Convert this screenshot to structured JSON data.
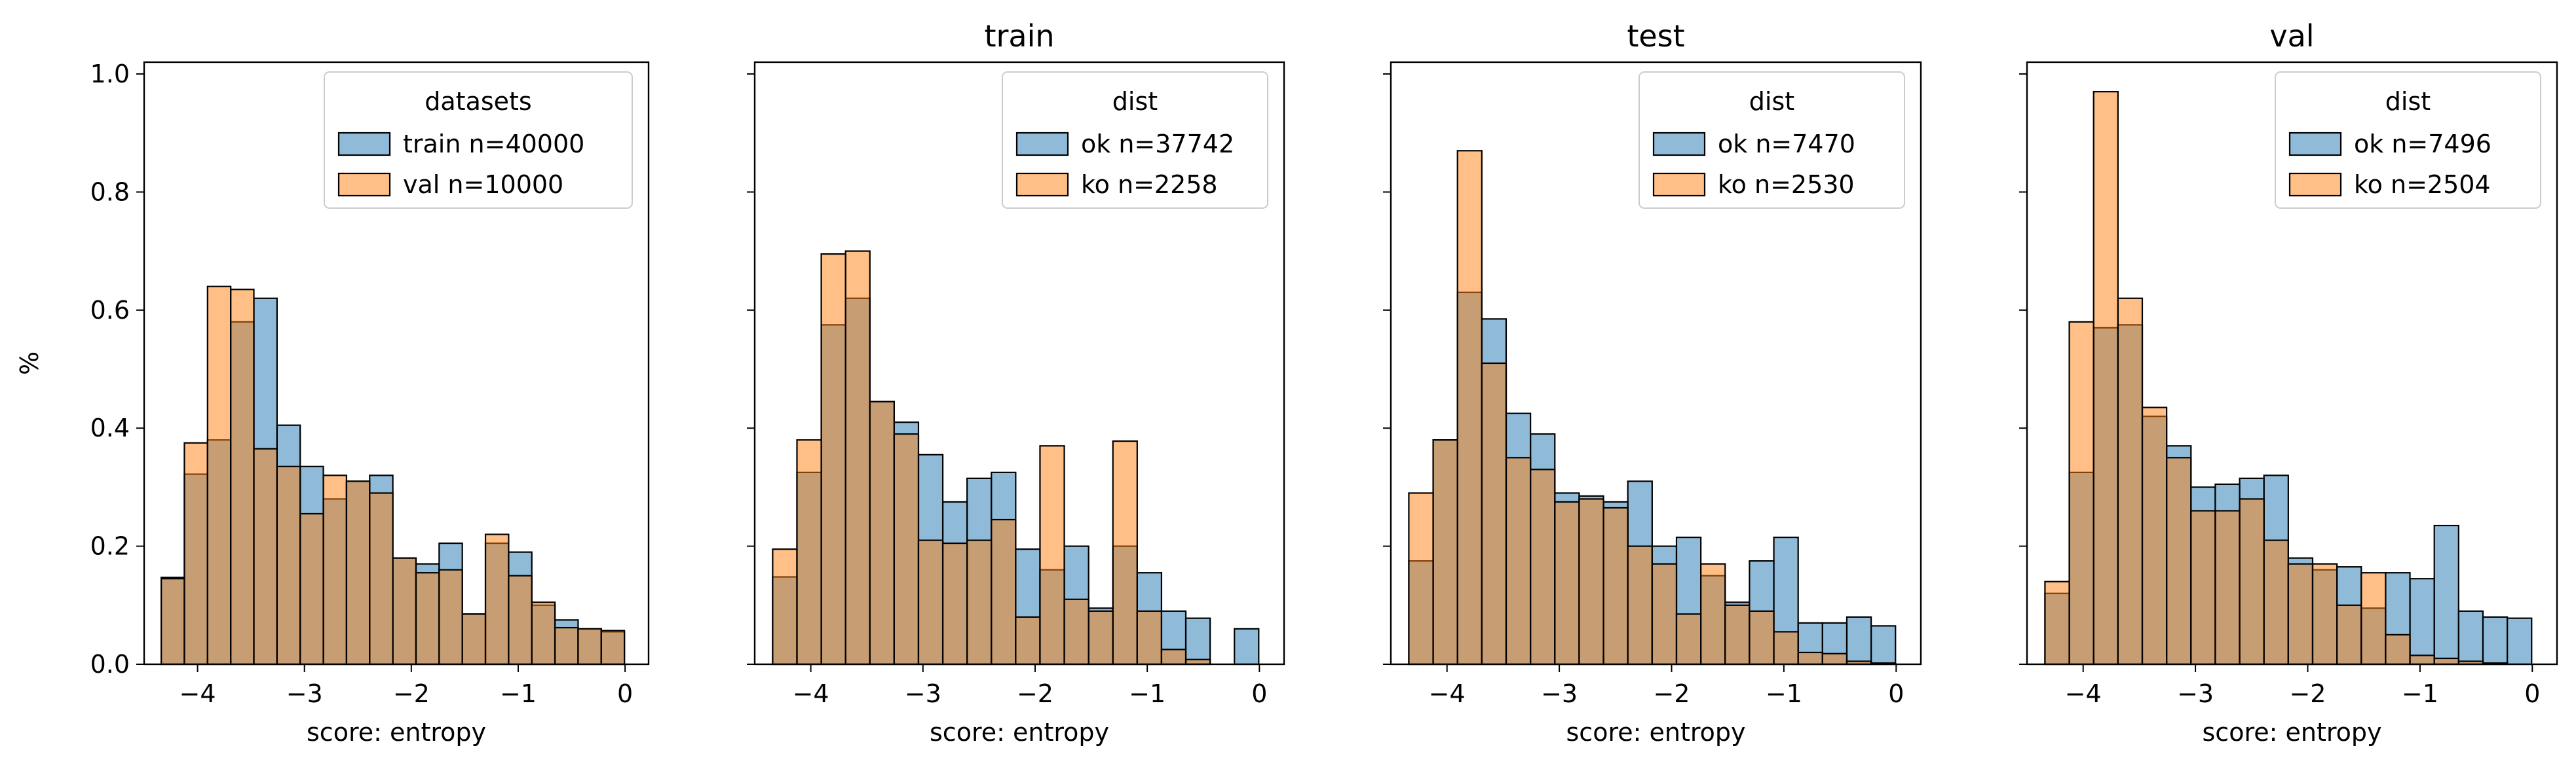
{
  "colors": {
    "series_a": "#1f77b4",
    "series_b": "#ff7f0e",
    "edge": "#000000"
  },
  "chart_data": [
    {
      "type": "bar",
      "subtype": "overlaid-histogram",
      "title": "",
      "xlabel": "score: entropy",
      "ylabel": "%",
      "xlim": [
        -4.5,
        0.22
      ],
      "ylim": [
        0,
        1.02
      ],
      "xticks": [
        "−4",
        "−3",
        "−2",
        "−1",
        "0"
      ],
      "yticks": [
        "0.0",
        "0.2",
        "0.4",
        "0.6",
        "0.8",
        "1.0"
      ],
      "legend": {
        "title": "datasets",
        "position": "top-right"
      },
      "bins": {
        "start": -4.34,
        "width": 0.2167
      },
      "series": [
        {
          "name": "train n=40000",
          "color": "series_a",
          "values": [
            0.147,
            0.322,
            0.38,
            0.58,
            0.62,
            0.405,
            0.335,
            0.28,
            0.31,
            0.32,
            0.18,
            0.17,
            0.205,
            0.085,
            0.205,
            0.19,
            0.1,
            0.075,
            0.06,
            0.055
          ]
        },
        {
          "name": "val n=10000",
          "color": "series_b",
          "values": [
            0.145,
            0.375,
            0.64,
            0.635,
            0.365,
            0.335,
            0.255,
            0.32,
            0.31,
            0.29,
            0.18,
            0.155,
            0.16,
            0.085,
            0.22,
            0.15,
            0.105,
            0.062,
            0.06,
            0.057
          ]
        }
      ]
    },
    {
      "type": "bar",
      "subtype": "overlaid-histogram",
      "title": "train",
      "xlabel": "score: entropy",
      "ylabel": "",
      "xlim": [
        -4.5,
        0.22
      ],
      "ylim": [
        0,
        1.02
      ],
      "xticks": [
        "−4",
        "−3",
        "−2",
        "−1",
        "0"
      ],
      "yticks": [
        "0.0",
        "0.2",
        "0.4",
        "0.6",
        "0.8",
        "1.0"
      ],
      "legend": {
        "title": "dist",
        "position": "top-right"
      },
      "bins": {
        "start": -4.34,
        "width": 0.2167
      },
      "series": [
        {
          "name": "ok n=37742",
          "color": "series_a",
          "values": [
            0.148,
            0.325,
            0.575,
            0.62,
            0.445,
            0.41,
            0.355,
            0.275,
            0.315,
            0.325,
            0.195,
            0.16,
            0.2,
            0.095,
            0.2,
            0.155,
            0.09,
            0.078,
            0.0,
            0.06
          ]
        },
        {
          "name": "ko n=2258",
          "color": "series_b",
          "values": [
            0.195,
            0.38,
            0.695,
            0.7,
            0.445,
            0.39,
            0.21,
            0.205,
            0.21,
            0.245,
            0.08,
            0.37,
            0.11,
            0.09,
            0.378,
            0.09,
            0.025,
            0.008,
            0.0,
            0.0
          ]
        }
      ]
    },
    {
      "type": "bar",
      "subtype": "overlaid-histogram",
      "title": "test",
      "xlabel": "score: entropy",
      "ylabel": "",
      "xlim": [
        -4.5,
        0.22
      ],
      "ylim": [
        0,
        1.02
      ],
      "xticks": [
        "−4",
        "−3",
        "−2",
        "−1",
        "0"
      ],
      "yticks": [
        "0.0",
        "0.2",
        "0.4",
        "0.6",
        "0.8",
        "1.0"
      ],
      "legend": {
        "title": "dist",
        "position": "top-right"
      },
      "bins": {
        "start": -4.34,
        "width": 0.2167
      },
      "series": [
        {
          "name": "ok n=7470",
          "color": "series_a",
          "values": [
            0.175,
            0.38,
            0.63,
            0.585,
            0.425,
            0.39,
            0.29,
            0.285,
            0.275,
            0.31,
            0.2,
            0.215,
            0.15,
            0.105,
            0.175,
            0.215,
            0.07,
            0.07,
            0.08,
            0.065
          ]
        },
        {
          "name": "ko n=2530",
          "color": "series_b",
          "values": [
            0.29,
            0.38,
            0.87,
            0.51,
            0.35,
            0.33,
            0.275,
            0.28,
            0.265,
            0.2,
            0.17,
            0.085,
            0.17,
            0.1,
            0.09,
            0.055,
            0.02,
            0.018,
            0.005,
            0.002
          ]
        }
      ]
    },
    {
      "type": "bar",
      "subtype": "overlaid-histogram",
      "title": "val",
      "xlabel": "score: entropy",
      "ylabel": "",
      "xlim": [
        -4.5,
        0.22
      ],
      "ylim": [
        0,
        1.02
      ],
      "xticks": [
        "−4",
        "−3",
        "−2",
        "−1",
        "0"
      ],
      "yticks": [
        "0.0",
        "0.2",
        "0.4",
        "0.6",
        "0.8",
        "1.0"
      ],
      "legend": {
        "title": "dist",
        "position": "top-right"
      },
      "bins": {
        "start": -4.34,
        "width": 0.2167
      },
      "series": [
        {
          "name": "ok n=7496",
          "color": "series_a",
          "values": [
            0.12,
            0.325,
            0.57,
            0.575,
            0.42,
            0.37,
            0.3,
            0.305,
            0.315,
            0.32,
            0.18,
            0.16,
            0.165,
            0.095,
            0.155,
            0.145,
            0.235,
            0.09,
            0.08,
            0.078
          ]
        },
        {
          "name": "ko n=2504",
          "color": "series_b",
          "values": [
            0.14,
            0.58,
            0.97,
            0.62,
            0.435,
            0.35,
            0.26,
            0.26,
            0.28,
            0.21,
            0.17,
            0.17,
            0.1,
            0.155,
            0.05,
            0.015,
            0.01,
            0.005,
            0.002,
            0.0
          ]
        }
      ]
    }
  ]
}
